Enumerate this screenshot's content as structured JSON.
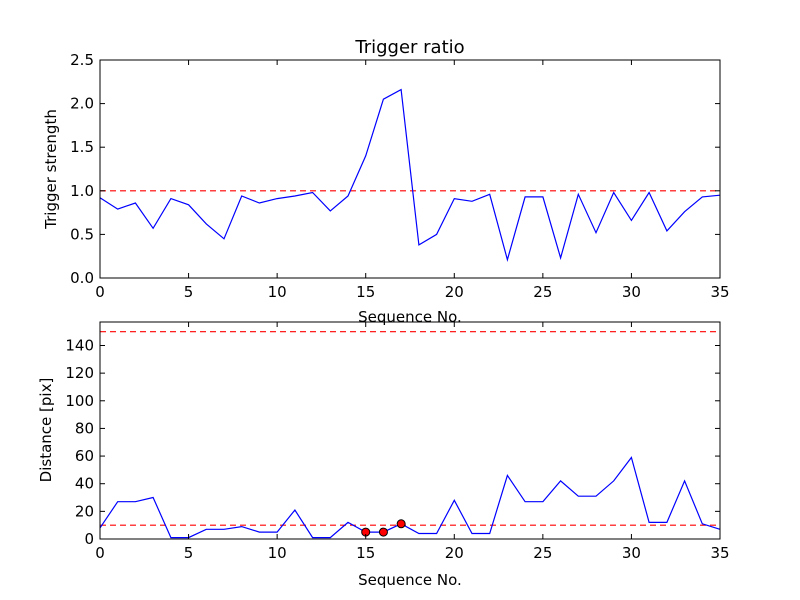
{
  "chart_data": [
    {
      "type": "line",
      "title": "Trigger ratio",
      "xlabel": "Sequence No.",
      "ylabel": "Trigger strength",
      "xlim": [
        0,
        35
      ],
      "ylim": [
        0,
        2.5
      ],
      "xticks": [
        "0",
        "5",
        "10",
        "15",
        "20",
        "25",
        "30",
        "35"
      ],
      "yticks": [
        "0.0",
        "0.5",
        "1.0",
        "1.5",
        "2.0",
        "2.5"
      ],
      "grid": false,
      "series": [
        {
          "color": "#0000ff",
          "x": [
            0,
            1,
            2,
            3,
            4,
            5,
            6,
            7,
            8,
            9,
            10,
            11,
            12,
            13,
            14,
            15,
            16,
            17,
            18,
            19,
            20,
            21,
            22,
            23,
            24,
            25,
            26,
            27,
            28,
            29,
            30,
            31,
            32,
            33,
            34,
            35
          ],
          "y": [
            0.92,
            0.79,
            0.86,
            0.57,
            0.91,
            0.84,
            0.62,
            0.45,
            0.94,
            0.86,
            0.91,
            0.94,
            0.98,
            0.77,
            0.94,
            1.4,
            2.05,
            2.16,
            0.38,
            0.5,
            0.91,
            0.88,
            0.96,
            0.21,
            0.93,
            0.93,
            0.23,
            0.96,
            0.52,
            0.98,
            0.66,
            0.98,
            0.54,
            0.76,
            0.93,
            0.95
          ]
        }
      ],
      "reference_lines": [
        {
          "y": 1.0,
          "color": "#ff0000",
          "style": "dashed"
        }
      ]
    },
    {
      "type": "line",
      "title": "",
      "xlabel": "Sequence No.",
      "ylabel": "Distance [pix]",
      "xlim": [
        0,
        35
      ],
      "ylim": [
        0,
        157
      ],
      "xticks": [
        "0",
        "5",
        "10",
        "15",
        "20",
        "25",
        "30",
        "35"
      ],
      "yticks": [
        "0",
        "20",
        "40",
        "60",
        "80",
        "100",
        "120",
        "140"
      ],
      "grid": false,
      "series": [
        {
          "color": "#0000ff",
          "x": [
            0,
            1,
            2,
            3,
            4,
            5,
            6,
            7,
            8,
            9,
            10,
            11,
            12,
            13,
            14,
            15,
            16,
            17,
            18,
            19,
            20,
            21,
            22,
            23,
            24,
            25,
            26,
            27,
            28,
            29,
            30,
            31,
            32,
            33,
            34,
            35
          ],
          "y": [
            8,
            27,
            27,
            30,
            1,
            1,
            7,
            7,
            9,
            5,
            5,
            21,
            1,
            1,
            12,
            5,
            5,
            11,
            4,
            4,
            28,
            4,
            4,
            46,
            27,
            27,
            42,
            31,
            31,
            42,
            59,
            12,
            12,
            42,
            11,
            7
          ]
        }
      ],
      "markers": [
        {
          "x": 15,
          "y": 5,
          "color": "#ff0000"
        },
        {
          "x": 16,
          "y": 5,
          "color": "#ff0000"
        },
        {
          "x": 17,
          "y": 11,
          "color": "#ff0000"
        }
      ],
      "reference_lines": [
        {
          "y": 150,
          "color": "#ff0000",
          "style": "dashed"
        },
        {
          "y": 10,
          "color": "#ff0000",
          "style": "dashed"
        }
      ]
    }
  ]
}
